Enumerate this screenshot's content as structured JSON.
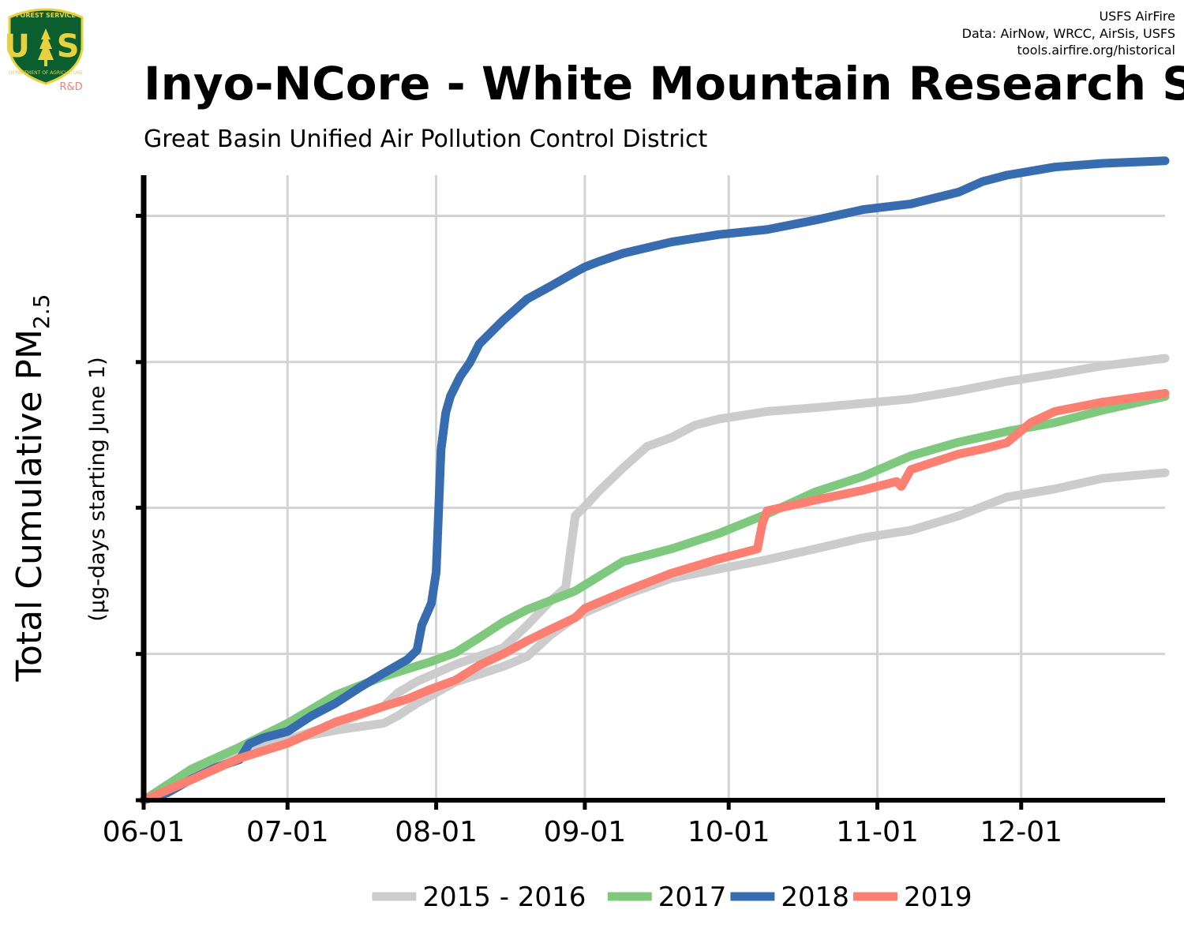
{
  "logo": {
    "top_text": "FOREST SERVICE",
    "letters": "U S",
    "bottom_text": "DEPARTMENT OF AGRICULTURE",
    "rd_text": "R&D"
  },
  "credits": {
    "line1": "USFS AirFire",
    "line2": "Data: AirNow, WRCC, AirSis, USFS",
    "line3": "tools.airfire.org/historical"
  },
  "colors": {
    "gray": "#cccccc",
    "green": "#7fc97f",
    "blue": "#386cb0",
    "salmon": "#fb8072",
    "grid": "#d3d3d3",
    "axis": "#000000",
    "logo_shield": "#0b5e2e",
    "logo_gold": "#e8d13c",
    "rd_red": "#f08070"
  },
  "chart_data": {
    "type": "line",
    "title": "Inyo-NCore - White Mountain Research S",
    "subtitle": "Great Basin Unified Air Pollution Control District",
    "ylabel_main": "Total Cumulative PM",
    "ylabel_sub": "2.5",
    "ylabel_note": "(µg-days starting June 1)",
    "xlim": [
      0,
      213
    ],
    "ylim": [
      0,
      100
    ],
    "x_tick_values": [
      0,
      30,
      61,
      92,
      122,
      153,
      183
    ],
    "x_tick_labels": [
      "06-01",
      "07-01",
      "08-01",
      "09-01",
      "10-01",
      "11-01",
      "12-01"
    ],
    "y_tick_values": [
      0,
      23.4,
      46.8,
      70.1,
      93.5
    ],
    "grid": true,
    "legend_position": "bottom",
    "legend": [
      "2015 - 2016",
      "2017",
      "2018",
      "2019"
    ],
    "series": [
      {
        "name": "2015 - 2016",
        "color": "#cccccc",
        "x": [
          0,
          10,
          20,
          30,
          40,
          50,
          53,
          57,
          65,
          75,
          80,
          85,
          88,
          90,
          92,
          95,
          100,
          105,
          110,
          115,
          120,
          130,
          140,
          150,
          160,
          170,
          180,
          190,
          200,
          213
        ],
        "y": [
          0,
          4.5,
          7.5,
          9.7,
          12.2,
          15,
          17.2,
          19,
          21.7,
          24.4,
          28,
          32,
          34,
          45.5,
          47,
          49.5,
          53.2,
          56.6,
          58,
          60,
          61,
          62.2,
          62.8,
          63.5,
          64.2,
          65.5,
          67,
          68.2,
          69.5,
          70.7
        ]
      },
      {
        "name": "2015 - 2016",
        "color": "#cccccc",
        "x": [
          0,
          10,
          20,
          30,
          40,
          50,
          53,
          57,
          61,
          65,
          75,
          80,
          85,
          90,
          92,
          100,
          110,
          120,
          130,
          140,
          150,
          160,
          170,
          180,
          190,
          200,
          213
        ],
        "y": [
          0,
          4.5,
          7.5,
          9.7,
          11.2,
          12.3,
          13.5,
          15.5,
          17.2,
          18.9,
          21.4,
          23,
          26.5,
          29.3,
          30,
          32.7,
          35.5,
          37,
          38.5,
          40.2,
          42,
          43.2,
          45.5,
          48.5,
          49.8,
          51.5,
          52.4
        ]
      },
      {
        "name": "2017",
        "color": "#7fc97f",
        "x": [
          0,
          10,
          20,
          30,
          40,
          50,
          60,
          65,
          70,
          75,
          80,
          85,
          90,
          100,
          110,
          120,
          130,
          140,
          150,
          160,
          170,
          180,
          190,
          200,
          213
        ],
        "y": [
          0,
          5,
          8.5,
          12.3,
          16.8,
          19.8,
          22.2,
          23.6,
          26,
          28.5,
          30.5,
          32,
          33.5,
          38.2,
          40.2,
          42.7,
          45.8,
          49.3,
          51.8,
          55.1,
          57.3,
          59,
          60.4,
          62.4,
          64.6
        ]
      },
      {
        "name": "2018",
        "color": "#386cb0",
        "x": [
          0,
          5,
          10,
          15,
          20,
          22,
          25,
          30,
          35,
          40,
          45,
          50,
          55,
          57,
          58,
          60,
          61,
          62,
          63,
          64,
          66,
          68,
          70,
          75,
          80,
          85,
          90,
          92,
          95,
          100,
          110,
          120,
          130,
          140,
          150,
          160,
          170,
          175,
          180,
          190,
          200,
          213
        ],
        "y": [
          0,
          1.2,
          3.4,
          5.2,
          6.5,
          9,
          10,
          11,
          13.5,
          15.5,
          18,
          20.3,
          22.5,
          24,
          28,
          31.5,
          36.5,
          56,
          62,
          64.7,
          67.8,
          70,
          73,
          76.8,
          80.2,
          82.3,
          84.5,
          85.3,
          86.2,
          87.5,
          89.3,
          90.5,
          91.3,
          92.8,
          94.5,
          95.4,
          97.3,
          99,
          100,
          101.3,
          101.9,
          102.3
        ]
      },
      {
        "name": "2019",
        "color": "#fb8072",
        "x": [
          0,
          10,
          20,
          30,
          40,
          50,
          55,
          60,
          65,
          70,
          75,
          80,
          85,
          90,
          92,
          100,
          110,
          120,
          128,
          129,
          130,
          140,
          150,
          157,
          158,
          160,
          170,
          175,
          180,
          185,
          190,
          200,
          213
        ],
        "y": [
          0,
          3.3,
          6.7,
          9.1,
          12.5,
          15,
          16.2,
          17.8,
          19.2,
          21.6,
          23.4,
          25.5,
          27.4,
          29.2,
          30.7,
          33.3,
          36.3,
          38.6,
          40.2,
          44.2,
          46.3,
          48,
          49.6,
          51,
          50.2,
          52.9,
          55.4,
          56.2,
          57.2,
          60.4,
          62.2,
          63.7,
          65.1
        ]
      }
    ]
  }
}
